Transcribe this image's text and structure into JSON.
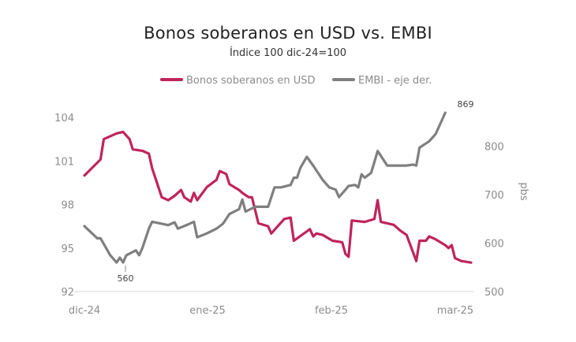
{
  "chart_data": {
    "type": "line",
    "title": "Bonos soberanos en USD vs. EMBI",
    "subtitle": "Índice 100 dic-24=100",
    "x_ticks": [
      "dic-24",
      "ene-25",
      "feb-25",
      "mar-25"
    ],
    "y_left": {
      "ticks": [
        "92",
        "95",
        "98",
        "101",
        "104"
      ],
      "ylim": [
        92,
        105
      ]
    },
    "y_right": {
      "label": "pbs",
      "ticks": [
        "500",
        "600",
        "700",
        "800"
      ],
      "ylim": [
        500,
        900
      ]
    },
    "grid": false,
    "legend_position": "top-center",
    "annotations": [
      "560",
      "869"
    ],
    "series": [
      {
        "name": "Bonos soberanos en USD",
        "axis": "left",
        "color": "#c0245c",
        "values": [
          [
            0,
            100.0
          ],
          [
            5,
            101.1
          ],
          [
            6,
            102.5
          ],
          [
            10,
            102.9
          ],
          [
            12,
            103.0
          ],
          [
            14,
            102.5
          ],
          [
            15,
            101.8
          ],
          [
            18,
            101.7
          ],
          [
            20,
            101.5
          ],
          [
            21,
            100.5
          ],
          [
            24,
            98.5
          ],
          [
            26,
            98.3
          ],
          [
            28,
            98.6
          ],
          [
            30,
            99.0
          ],
          [
            31,
            98.5
          ],
          [
            33,
            98.2
          ],
          [
            34,
            98.8
          ],
          [
            35,
            98.3
          ],
          [
            38,
            99.2
          ],
          [
            41,
            99.7
          ],
          [
            42,
            100.3
          ],
          [
            44,
            100.1
          ],
          [
            45,
            99.4
          ],
          [
            48,
            99.0
          ],
          [
            49,
            98.8
          ],
          [
            51,
            98.5
          ],
          [
            52,
            98.5
          ],
          [
            54,
            96.7
          ],
          [
            57,
            96.5
          ],
          [
            58,
            96.0
          ],
          [
            62,
            97.0
          ],
          [
            64,
            97.1
          ],
          [
            65,
            95.5
          ],
          [
            70,
            96.3
          ],
          [
            71,
            95.8
          ],
          [
            72,
            96.0
          ],
          [
            74,
            95.9
          ],
          [
            77,
            95.5
          ],
          [
            80,
            95.4
          ],
          [
            81,
            94.6
          ],
          [
            82,
            94.4
          ],
          [
            83,
            96.9
          ],
          [
            87,
            96.8
          ],
          [
            90,
            97.0
          ],
          [
            91,
            98.3
          ],
          [
            92,
            96.8
          ],
          [
            94,
            96.7
          ],
          [
            96,
            96.6
          ],
          [
            98,
            96.2
          ],
          [
            100,
            95.9
          ],
          [
            103,
            94.1
          ],
          [
            104,
            95.5
          ],
          [
            106,
            95.5
          ],
          [
            107,
            95.8
          ],
          [
            109,
            95.6
          ],
          [
            112,
            95.2
          ],
          [
            113,
            95.0
          ],
          [
            114,
            95.2
          ],
          [
            115,
            94.3
          ],
          [
            117,
            94.1
          ],
          [
            120,
            94.0
          ]
        ]
      },
      {
        "name": "EMBI - eje der.",
        "axis": "right",
        "color": "#7f7f7f",
        "values": [
          [
            0,
            635
          ],
          [
            4,
            610
          ],
          [
            5,
            610
          ],
          [
            8,
            575
          ],
          [
            10,
            560
          ],
          [
            11,
            570
          ],
          [
            12,
            560
          ],
          [
            13,
            575
          ],
          [
            16,
            585
          ],
          [
            17,
            575
          ],
          [
            18,
            590
          ],
          [
            20,
            630
          ],
          [
            21,
            644
          ],
          [
            24,
            640
          ],
          [
            26,
            637
          ],
          [
            28,
            643
          ],
          [
            29,
            630
          ],
          [
            32,
            638
          ],
          [
            34,
            644
          ],
          [
            35,
            612
          ],
          [
            38,
            620
          ],
          [
            41,
            630
          ],
          [
            43,
            640
          ],
          [
            45,
            660
          ],
          [
            48,
            670
          ],
          [
            49,
            690
          ],
          [
            50,
            665
          ],
          [
            53,
            675
          ],
          [
            55,
            675
          ],
          [
            57,
            675
          ],
          [
            59,
            715
          ],
          [
            61,
            715
          ],
          [
            64,
            720
          ],
          [
            65,
            735
          ],
          [
            66,
            735
          ],
          [
            67,
            755
          ],
          [
            69,
            778
          ],
          [
            71,
            760
          ],
          [
            74,
            730
          ],
          [
            76,
            715
          ],
          [
            78,
            710
          ],
          [
            79,
            695
          ],
          [
            81,
            710
          ],
          [
            82,
            718
          ],
          [
            84,
            720
          ],
          [
            85,
            715
          ],
          [
            86,
            742
          ],
          [
            87,
            735
          ],
          [
            89,
            745
          ],
          [
            91,
            790
          ],
          [
            92,
            780
          ],
          [
            94,
            760
          ],
          [
            97,
            760
          ],
          [
            99,
            760
          ],
          [
            100,
            760
          ],
          [
            102,
            762
          ],
          [
            103,
            760
          ],
          [
            104,
            797
          ],
          [
            107,
            810
          ],
          [
            109,
            825
          ],
          [
            112,
            869
          ]
        ]
      }
    ]
  }
}
